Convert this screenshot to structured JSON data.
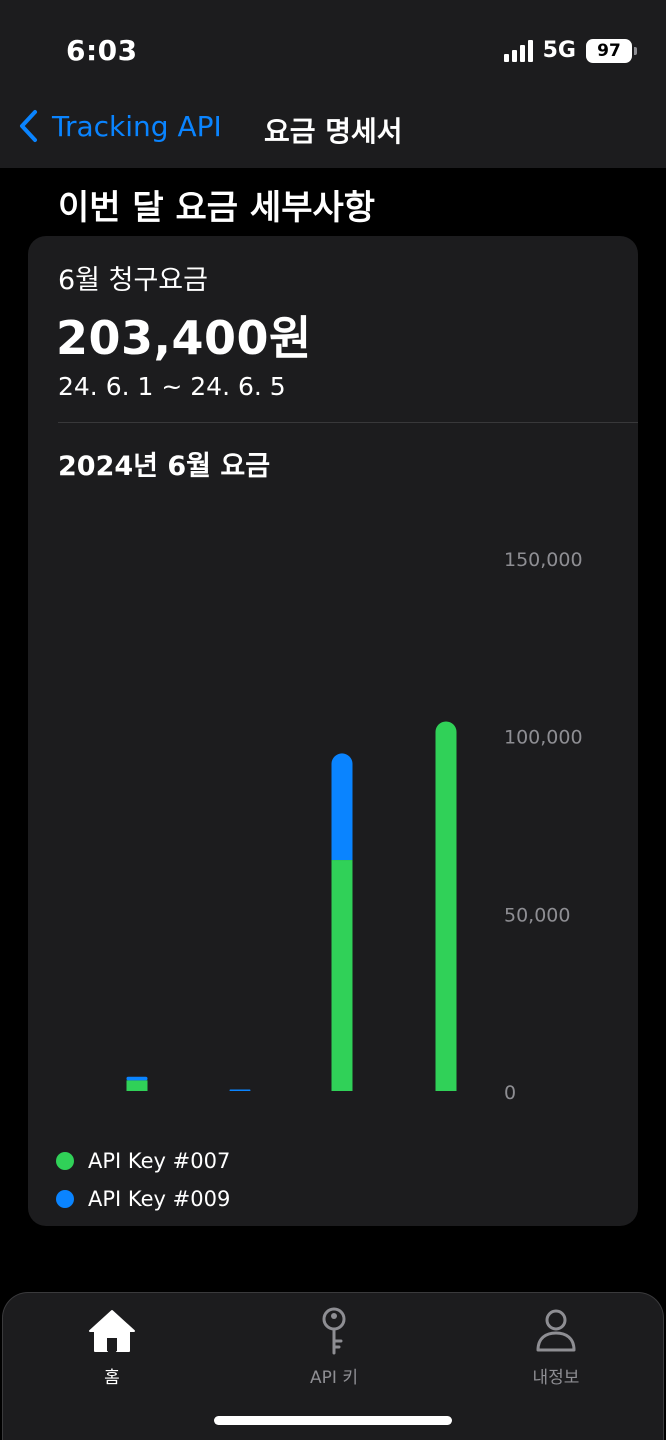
{
  "status": {
    "time": "6:03",
    "network": "5G",
    "battery": "97"
  },
  "nav": {
    "back_label": "Tracking API",
    "title": "요금 명세서"
  },
  "section_title": "이번 달 요금 세부사항",
  "bill": {
    "title": "6월 청구요금",
    "amount": "203,400원",
    "period": "24. 6. 1 ~ 24. 6. 5"
  },
  "colors": {
    "accent": "#0a84ff",
    "green": "#30d158",
    "blue": "#0a84ff"
  },
  "chart_data": {
    "type": "bar",
    "stacked": true,
    "title": "2024년 6월 요금",
    "categories": [
      "",
      "",
      "",
      ""
    ],
    "series": [
      {
        "name": "API Key #007",
        "color": "#30d158",
        "values": [
          3000,
          0,
          65000,
          104000
        ]
      },
      {
        "name": "API Key #009",
        "color": "#0a84ff",
        "values": [
          1000,
          400,
          30000,
          0
        ]
      }
    ],
    "ylim": [
      0,
      150000
    ],
    "yticks": [
      {
        "value": 150000,
        "label": "150,000"
      },
      {
        "value": 100000,
        "label": "100,000"
      },
      {
        "value": 50000,
        "label": "50,000"
      },
      {
        "value": 0,
        "label": "0"
      }
    ],
    "y_axis_position": "right",
    "legend": "bottom-left",
    "grid": false
  },
  "tabs": [
    {
      "label": "홈",
      "icon": "home-icon",
      "active": true
    },
    {
      "label": "API 키",
      "icon": "key-icon",
      "active": false
    },
    {
      "label": "내정보",
      "icon": "person-icon",
      "active": false
    }
  ]
}
